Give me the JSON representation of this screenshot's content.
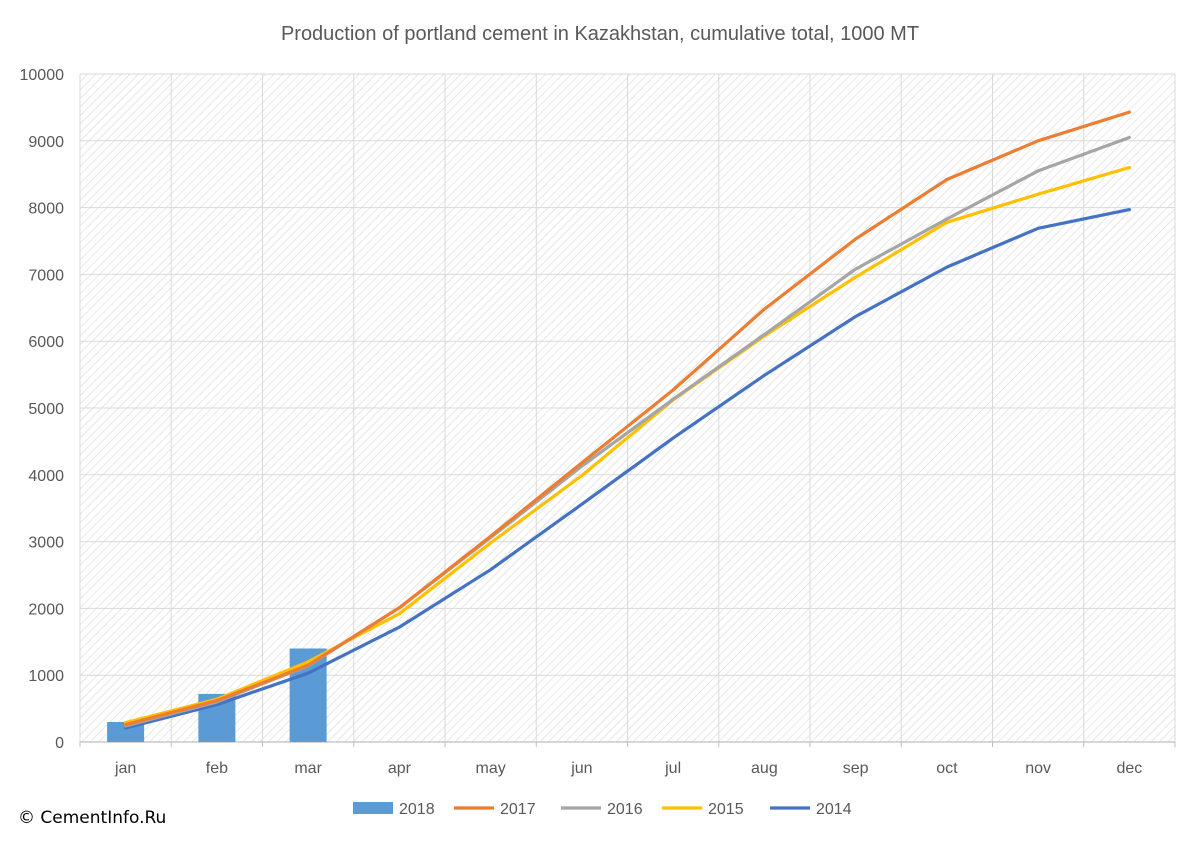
{
  "copyright": "© CementInfo.Ru",
  "chart_data": {
    "type": "bar+line",
    "title": "Production of portland cement in Kazakhstan, cumulative total, 1000 MT",
    "xlabel": "",
    "ylabel": "",
    "ylim": [
      0,
      10000
    ],
    "yticks": [
      0,
      1000,
      2000,
      3000,
      4000,
      5000,
      6000,
      7000,
      8000,
      9000,
      10000
    ],
    "categories": [
      "jan",
      "feb",
      "mar",
      "apr",
      "may",
      "jun",
      "jul",
      "aug",
      "sep",
      "oct",
      "nov",
      "dec"
    ],
    "grid": true,
    "legend_position": "bottom",
    "series": [
      {
        "name": "2018",
        "kind": "bar",
        "color": "#5B9BD5",
        "values": [
          300,
          720,
          1400,
          null,
          null,
          null,
          null,
          null,
          null,
          null,
          null,
          null
        ]
      },
      {
        "name": "2017",
        "kind": "line",
        "color": "#ED7D31",
        "values": [
          260,
          620,
          1150,
          2010,
          3080,
          4180,
          5270,
          6480,
          7530,
          8420,
          9000,
          9430
        ]
      },
      {
        "name": "2016",
        "kind": "line",
        "color": "#A5A5A5",
        "values": [
          240,
          600,
          1140,
          2010,
          3060,
          4130,
          5130,
          6100,
          7080,
          7830,
          8550,
          9050
        ]
      },
      {
        "name": "2015",
        "kind": "line",
        "color": "#FFC000",
        "values": [
          290,
          640,
          1200,
          1920,
          2980,
          3990,
          5120,
          6080,
          6960,
          7780,
          8200,
          8600
        ]
      },
      {
        "name": "2014",
        "kind": "line",
        "color": "#4472C4",
        "values": [
          210,
          560,
          1030,
          1720,
          2580,
          3560,
          4550,
          5490,
          6370,
          7110,
          7690,
          7970
        ]
      }
    ]
  }
}
